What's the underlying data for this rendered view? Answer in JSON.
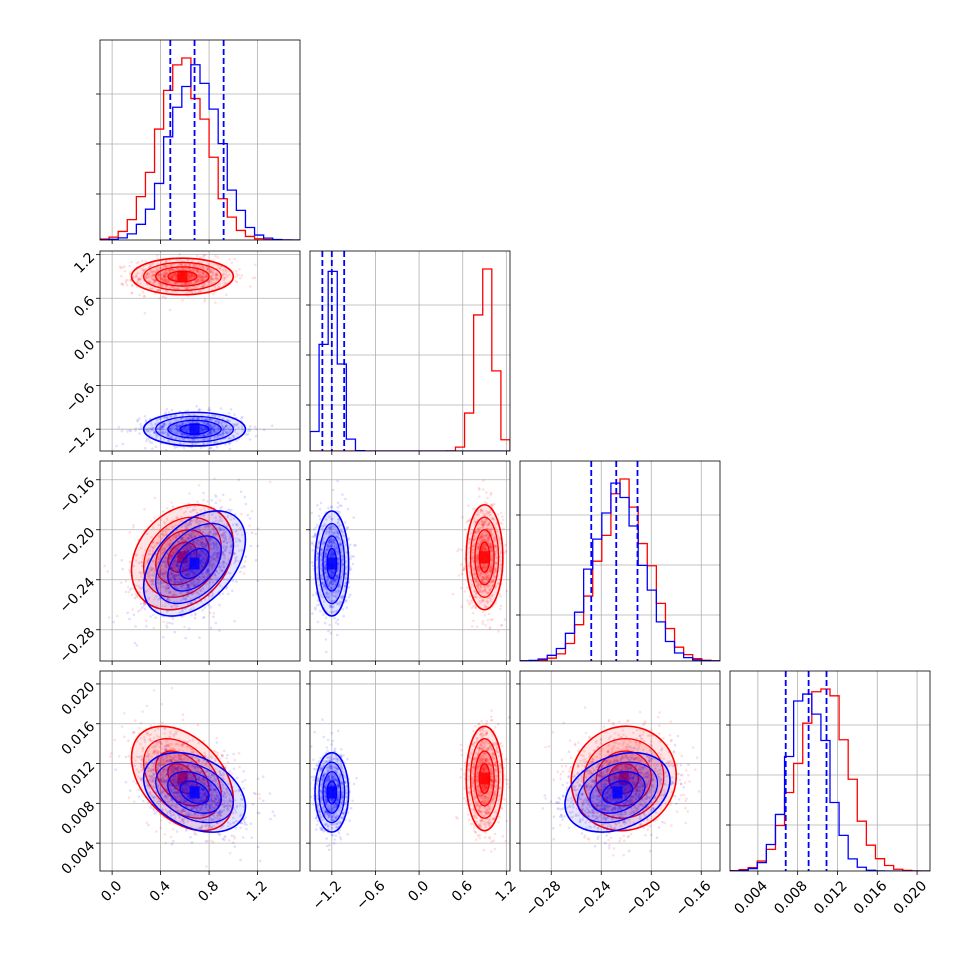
{
  "chart_data": {
    "type": "corner",
    "grid": true,
    "colors": {
      "series_a": "#ff0000",
      "series_b": "#0000ff",
      "quantile_line": "#0000ff"
    },
    "parameters": [
      {
        "index": 0,
        "range": [
          -0.1,
          1.55
        ],
        "ticks": [
          0.0,
          0.4,
          0.8,
          1.2
        ],
        "tick_labels": [
          "0.0",
          "0.4",
          "0.8",
          "1.2"
        ]
      },
      {
        "index": 1,
        "range": [
          -1.5,
          1.25
        ],
        "ticks": [
          -1.2,
          -0.6,
          0.0,
          0.6,
          1.2
        ],
        "tick_labels": [
          "−1.2",
          "−0.6",
          "0.0",
          "0.6",
          "1.2"
        ]
      },
      {
        "index": 2,
        "range": [
          -0.305,
          -0.145
        ],
        "ticks": [
          -0.28,
          -0.24,
          -0.2,
          -0.16
        ],
        "tick_labels": [
          "−0.28",
          "−0.24",
          "−0.20",
          "−0.16"
        ]
      },
      {
        "index": 3,
        "range": [
          0.0012,
          0.0213
        ],
        "ticks": [
          0.004,
          0.008,
          0.012,
          0.016,
          0.02
        ],
        "tick_labels": [
          "0.004",
          "0.008",
          "0.012",
          "0.016",
          "0.020"
        ]
      }
    ],
    "series": [
      {
        "key": "a",
        "means": [
          0.58,
          0.9,
          -0.222,
          0.0105
        ],
        "sigmas": [
          0.2,
          0.12,
          0.02,
          0.0025
        ],
        "quantiles": []
      },
      {
        "key": "b",
        "means": [
          0.68,
          -1.2,
          -0.227,
          0.0091
        ],
        "sigmas": [
          0.2,
          0.11,
          0.02,
          0.0019
        ],
        "quantiles": [
          [
            0.48,
            0.68,
            0.92
          ],
          [
            -1.33,
            -1.2,
            -1.03
          ],
          [
            -0.248,
            -0.228,
            -0.211
          ],
          [
            0.0068,
            0.0091,
            0.0109
          ]
        ]
      }
    ],
    "correlations": {
      "0-2": {
        "a": 0.25,
        "b": 0.45
      },
      "0-3": {
        "a": -0.4,
        "b": -0.35
      },
      "2-3": {
        "a": 0.05,
        "b": 0.3
      }
    }
  }
}
